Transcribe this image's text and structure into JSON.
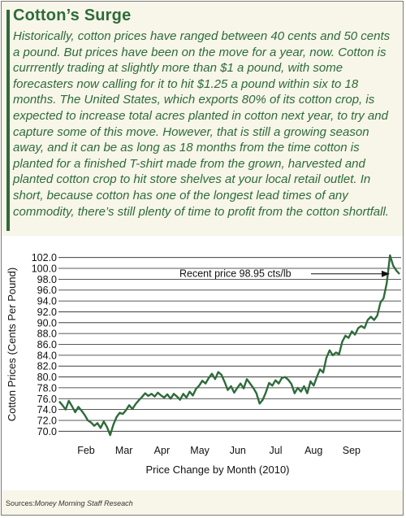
{
  "header": {
    "title": "Cotton’s Surge",
    "paragraph": "Historically, cotton prices have ranged between 40 cents and 50 cents a pound. But prices have been on the move for a year, now. Cotton is currrently trading at slightly more than $1 a pound, with some forecasters now calling for it to hit $1.25 a pound within six to 18 months. The United States, which exports 80% of its cotton crop, is expected to increase total acres planted in cotton next year, to try and capture some of this move.  However, that is still a growing season away, and it can be as long as 18 months from the time cotton is planted for a finished T-shirt made from the grown, harvested and planted cotton crop to hit store shelves at your local retail outlet. In short, because cotton has one of the longest lead times of any commodity, there’s still plenty of time to profit from the cotton shortfall."
  },
  "source": {
    "label": "Sources:",
    "text": "Money Morning Staff Reseach"
  },
  "colors": {
    "accent": "#2e6b3a",
    "line": "#2e6b3a",
    "background": "#f7f6e9"
  },
  "chart_data": {
    "type": "line",
    "xlabel": "Price Change  by Month (2010)",
    "ylabel": "Cotton Prices (Cents Per Pound)",
    "ylim": [
      69.0,
      103.0
    ],
    "yticks": [
      "102.0",
      "100.0",
      "98.0",
      "96.0",
      "94.0",
      "92.0",
      "90.0",
      "88.0",
      "86.0",
      "84.0",
      "82.0",
      "80.0",
      "78.0",
      "76.0",
      "74.0",
      "72.0",
      "70.0"
    ],
    "xticks": [
      "Feb",
      "Mar",
      "Apr",
      "May",
      "Jun",
      "Jul",
      "Aug",
      "Sep"
    ],
    "grid": "horizontal",
    "annotation": "Recent price 98.95 cts/lb",
    "series": [
      {
        "values": [
          75.5,
          74.8,
          74.0,
          75.6,
          74.6,
          73.5,
          74.5,
          73.8,
          73.0,
          72.0,
          71.6,
          71.0,
          71.5,
          70.6,
          71.8,
          70.8,
          69.3,
          71.2,
          72.6,
          73.4,
          73.2,
          73.9,
          74.8,
          74.1,
          75.0,
          75.7,
          76.3,
          77.0,
          76.5,
          76.9,
          76.4,
          77.1,
          76.6,
          76.2,
          76.8,
          76.0,
          76.9,
          76.4,
          75.8,
          76.9,
          76.2,
          77.3,
          76.6,
          77.8,
          78.4,
          79.3,
          78.8,
          79.8,
          80.6,
          79.6,
          80.9,
          80.4,
          79.1,
          77.6,
          78.3,
          77.1,
          78.0,
          78.8,
          77.9,
          79.6,
          78.8,
          78.0,
          77.0,
          75.1,
          75.8,
          77.2,
          78.9,
          78.4,
          79.4,
          78.8,
          79.8,
          80.0,
          79.5,
          78.7,
          77.0,
          78.0,
          77.3,
          78.3,
          77.0,
          79.2,
          78.4,
          80.0,
          81.4,
          80.8,
          83.5,
          84.9,
          84.0,
          84.5,
          84.2,
          86.5,
          87.6,
          87.2,
          88.4,
          87.8,
          89.0,
          89.4,
          89.0,
          90.5,
          91.1,
          90.5,
          91.3,
          93.7,
          94.5,
          97.3,
          102.4,
          100.5,
          99.6,
          98.95
        ]
      }
    ]
  }
}
